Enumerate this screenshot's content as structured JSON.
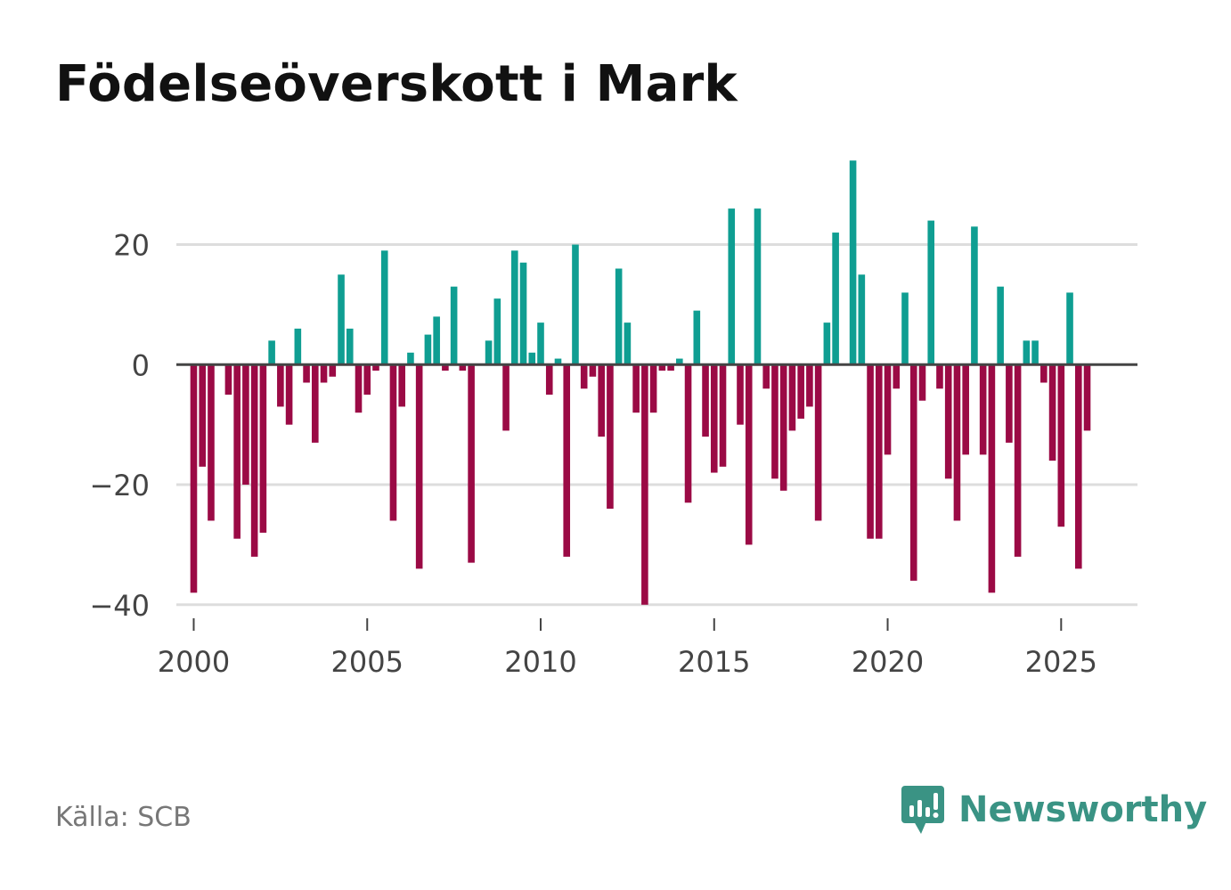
{
  "title": "Födelseöverskott i Mark",
  "source": "Källa: SCB",
  "brand": {
    "name": "Newsworthy",
    "icon": "newsworthy-logo-icon"
  },
  "colors": {
    "positive": "#0f9e92",
    "negative": "#9b0a45",
    "zero_line": "#444444",
    "grid": "#dddddd",
    "text": "#444444"
  },
  "chart_data": {
    "type": "bar",
    "title": "Födelseöverskott i Mark",
    "xlabel": "",
    "ylabel": "",
    "ylim": [
      -43,
      37
    ],
    "xlim": [
      1999.5,
      2027.2
    ],
    "grid": true,
    "y_ticks": [
      20,
      0,
      -20,
      -40
    ],
    "y_tick_labels": [
      "20",
      "0",
      "−20",
      "−40"
    ],
    "x_ticks": [
      2000,
      2005,
      2010,
      2015,
      2020,
      2025
    ],
    "x_tick_labels": [
      "2000",
      "2005",
      "2010",
      "2015",
      "2020",
      "2025"
    ],
    "start": 2000.0,
    "step": 0.25,
    "series": [
      {
        "name": "Födelseöverskott",
        "values": [
          -38,
          -17,
          -26,
          0,
          -5,
          -29,
          -20,
          -32,
          -28,
          4,
          -7,
          -10,
          6,
          -3,
          -13,
          -3,
          -2,
          15,
          6,
          -8,
          -5,
          -1,
          19,
          -26,
          -7,
          2,
          -34,
          5,
          8,
          -1,
          13,
          -1,
          -33,
          0,
          4,
          11,
          -11,
          19,
          17,
          2,
          7,
          -5,
          1,
          -32,
          20,
          -4,
          -2,
          -12,
          -24,
          16,
          7,
          -8,
          -40,
          -8,
          -1,
          -1,
          1,
          -23,
          9,
          -12,
          -18,
          -17,
          26,
          -10,
          -30,
          26,
          -4,
          -19,
          -21,
          -11,
          -9,
          -7,
          -26,
          7,
          22,
          0,
          34,
          15,
          -29,
          -29,
          -15,
          -4,
          12,
          -36,
          -6,
          24,
          -4,
          -19,
          -26,
          -15,
          23,
          -15,
          -38,
          13,
          -13,
          -32,
          4,
          4,
          -3,
          -16,
          -27,
          12,
          -34,
          -11
        ]
      }
    ]
  }
}
